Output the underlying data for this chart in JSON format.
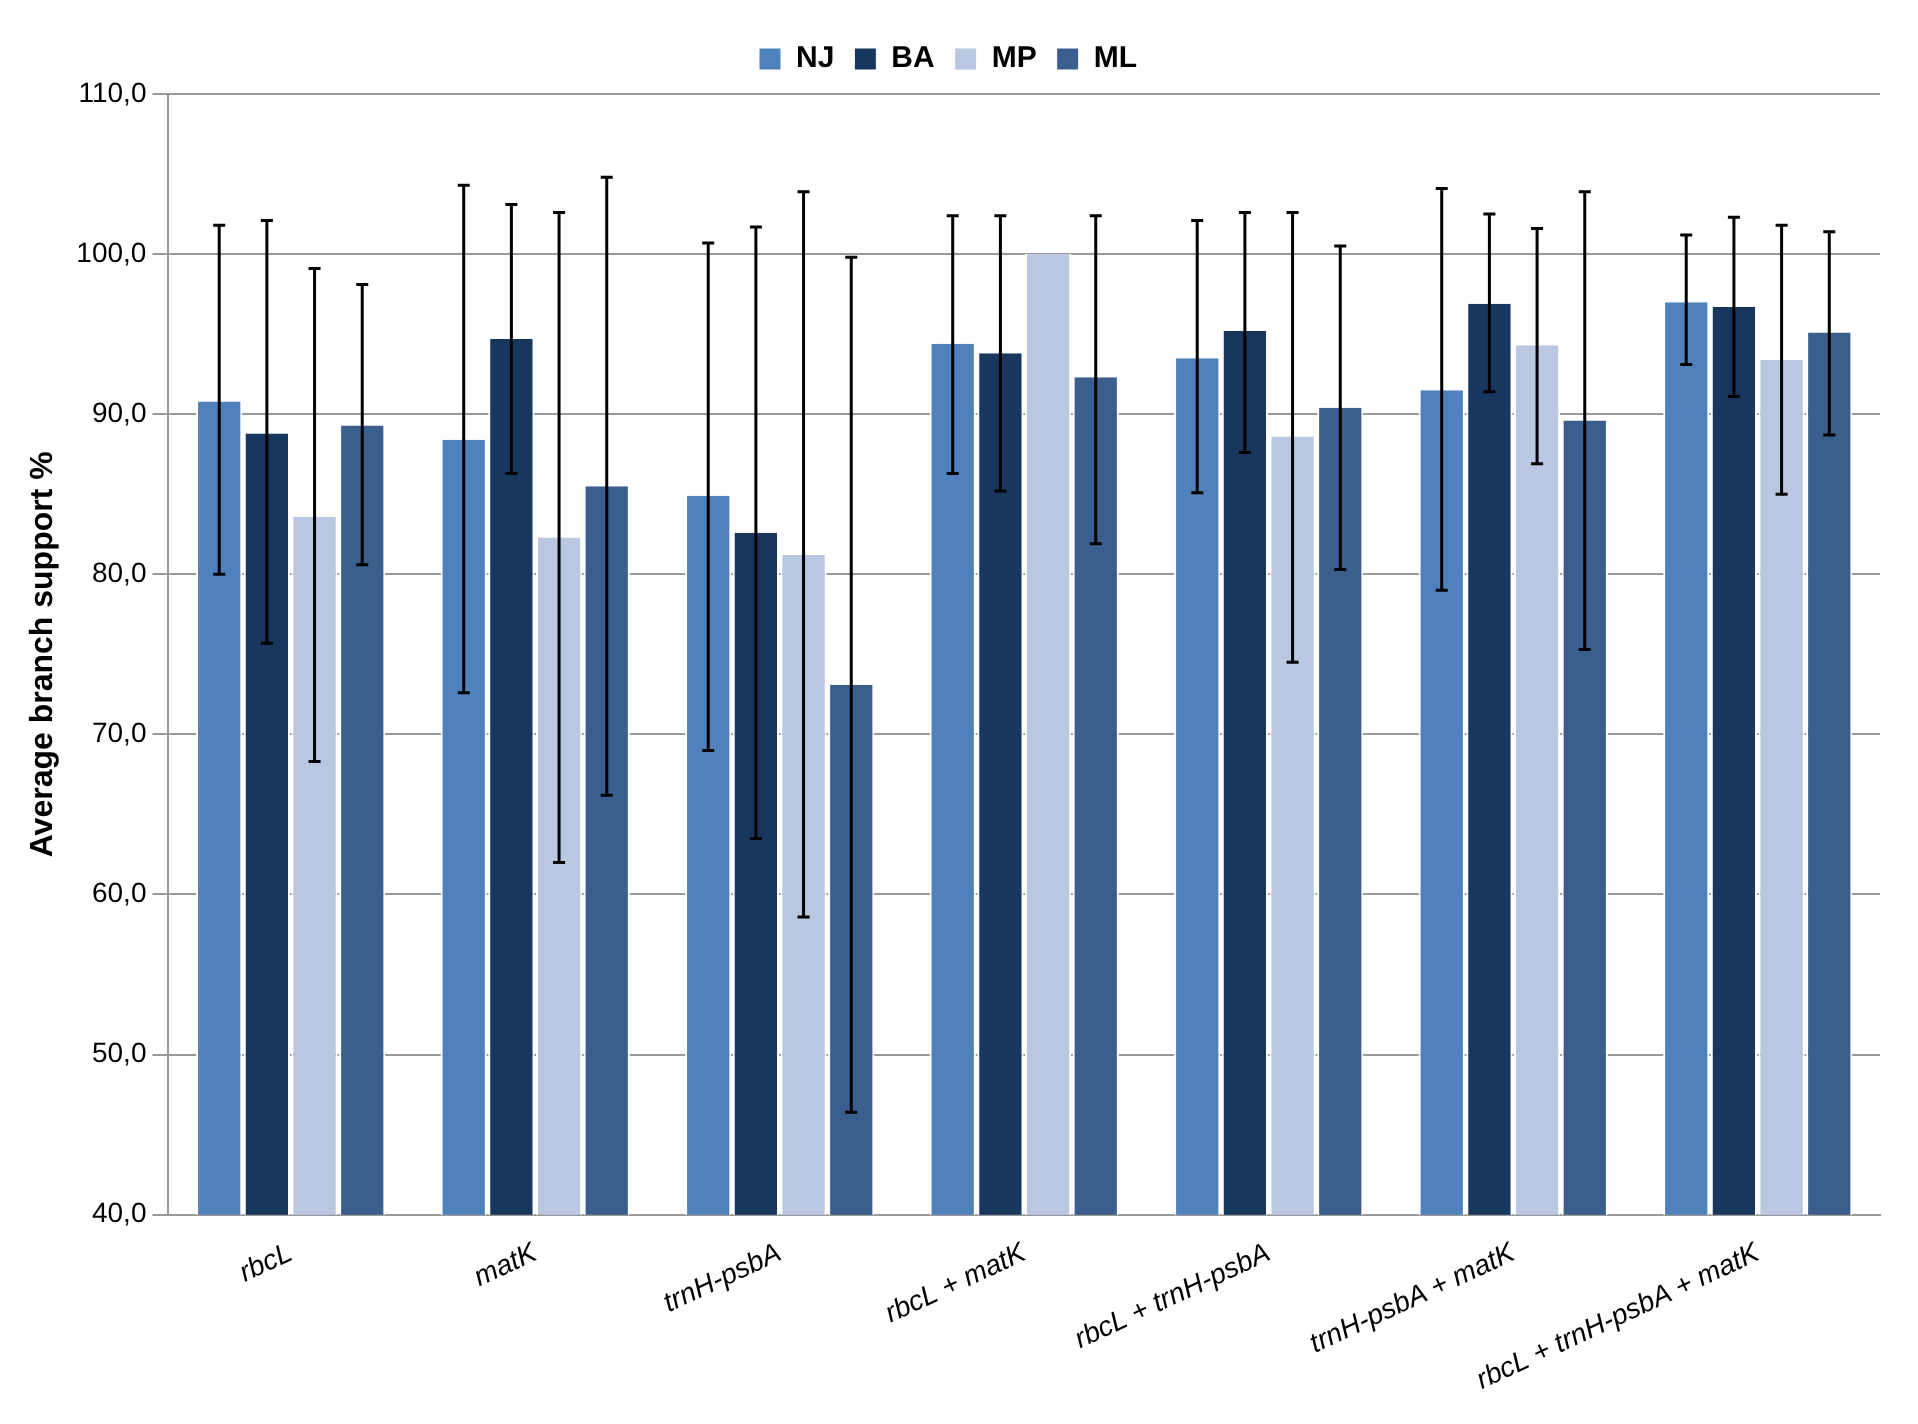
{
  "chart_data": {
    "type": "bar",
    "ylabel": "Average branch support %",
    "categories": [
      "rbcL",
      "matK",
      "trnH-psbA",
      "rbcL + matK",
      "rbcL + trnH-psbA",
      "trnH-psbA + matK",
      "rbcL + trnH-psbA + matK"
    ],
    "series": [
      {
        "name": "NJ",
        "color": "#4f81bd",
        "values": [
          90.8,
          88.4,
          84.9,
          94.4,
          93.5,
          91.5,
          97.0
        ],
        "errors": [
          [
            80.0,
            101.8
          ],
          [
            72.6,
            104.3
          ],
          [
            69.0,
            100.7
          ],
          [
            86.3,
            102.4
          ],
          [
            85.1,
            102.1
          ],
          [
            79.0,
            104.1
          ],
          [
            93.1,
            101.2
          ]
        ]
      },
      {
        "name": "BA",
        "color": "#17375e",
        "values": [
          88.8,
          94.7,
          82.6,
          93.8,
          95.2,
          96.9,
          96.7
        ],
        "errors": [
          [
            75.7,
            102.1
          ],
          [
            86.3,
            103.1
          ],
          [
            63.5,
            101.7
          ],
          [
            85.2,
            102.4
          ],
          [
            87.6,
            102.6
          ],
          [
            91.4,
            102.5
          ],
          [
            91.1,
            102.3
          ]
        ]
      },
      {
        "name": "MP",
        "color": "#b9c7e0",
        "values": [
          83.6,
          82.3,
          81.2,
          100.0,
          88.6,
          94.3,
          93.4
        ],
        "errors": [
          [
            68.3,
            99.1
          ],
          [
            62.0,
            102.6
          ],
          [
            58.6,
            103.9
          ],
          null,
          [
            74.5,
            102.6
          ],
          [
            86.9,
            101.6
          ],
          [
            85.0,
            101.8
          ]
        ]
      },
      {
        "name": "ML",
        "color": "#3a5f8f",
        "values": [
          89.3,
          85.5,
          73.1,
          92.3,
          90.4,
          89.6,
          95.1
        ],
        "errors": [
          [
            80.6,
            98.1
          ],
          [
            66.2,
            104.8
          ],
          [
            46.4,
            99.8
          ],
          [
            81.9,
            102.4
          ],
          [
            80.3,
            100.5
          ],
          [
            75.3,
            103.9
          ],
          [
            88.7,
            101.4
          ]
        ]
      }
    ],
    "ylim": [
      40,
      110
    ],
    "yticks": [
      {
        "value": 40,
        "label": "40,0"
      },
      {
        "value": 50,
        "label": "50,0"
      },
      {
        "value": 60,
        "label": "60,0"
      },
      {
        "value": 70,
        "label": "70,0"
      },
      {
        "value": 80,
        "label": "80,0"
      },
      {
        "value": 90,
        "label": "90,0"
      },
      {
        "value": 100,
        "label": "100,0"
      },
      {
        "value": 110,
        "label": "110,0"
      }
    ],
    "grid": "y",
    "legend": "top"
  }
}
